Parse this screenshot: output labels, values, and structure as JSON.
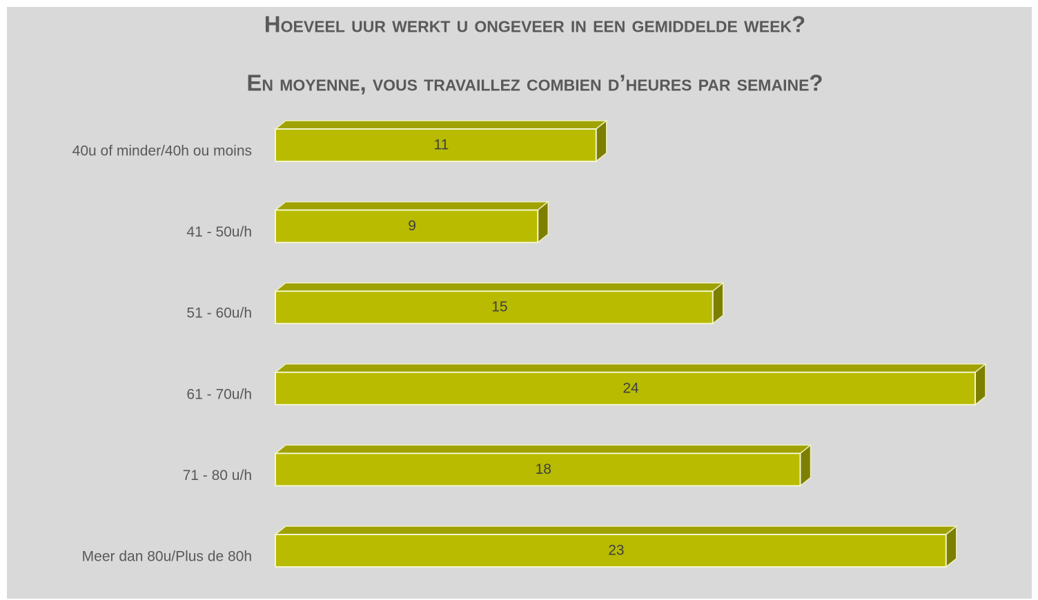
{
  "chart_data": {
    "type": "bar3d",
    "title": "Hoeveel uur werkt u ongeveer in een gemiddelde week?",
    "subtitle": "En moyenne, vous travaillez combien d’heures par semaine?",
    "categories": [
      "40u of minder/40h ou moins",
      "41 - 50u/h",
      "51 - 60u/h",
      "61 - 70u/h",
      "71 - 80 u/h",
      "Meer dan 80u/Plus de 80h"
    ],
    "values": [
      11,
      9,
      15,
      24,
      18,
      23
    ],
    "color": "#b8bb00"
  }
}
